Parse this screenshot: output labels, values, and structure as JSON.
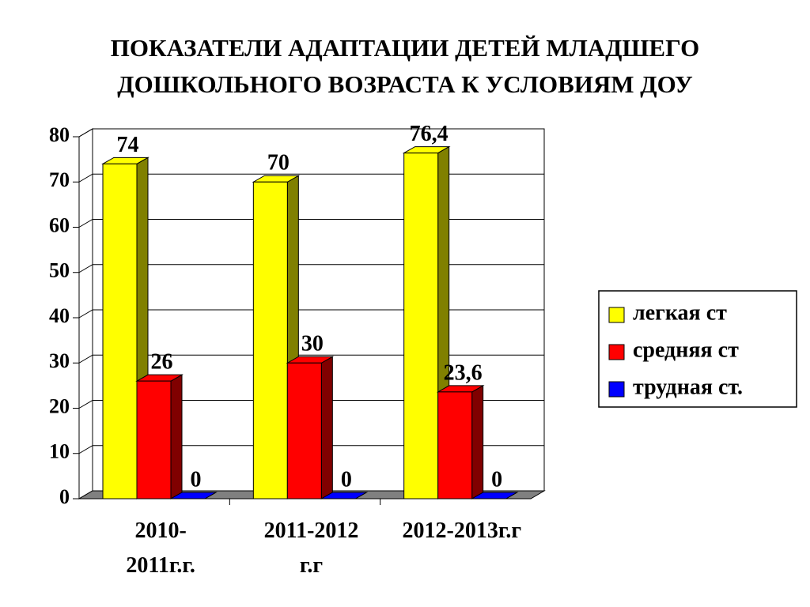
{
  "chart_data": {
    "type": "bar3d",
    "title": "ПОКАЗАТЕЛИ АДАПТАЦИИ ДЕТЕЙ МЛАДШЕГО ДОШКОЛЬНОГО ВОЗРАСТА К УСЛОВИЯМ ДОУ",
    "categories": [
      "2010-2011г.г.",
      "2011-2012 г.г",
      "2012-2013г.г"
    ],
    "series": [
      {
        "name": "легкая ст",
        "color": "#ffff00",
        "values": [
          74,
          70,
          76.4
        ],
        "value_labels": [
          "74",
          "70",
          "76,4"
        ]
      },
      {
        "name": "средняя ст",
        "color": "#ff0000",
        "values": [
          26,
          30,
          23.6
        ],
        "value_labels": [
          "26",
          "30",
          "23,6"
        ]
      },
      {
        "name": "трудная ст.",
        "color": "#0000ff",
        "values": [
          0,
          0,
          0
        ],
        "value_labels": [
          "0",
          "0",
          "0"
        ]
      }
    ],
    "ylim": [
      0,
      80
    ],
    "yticks": [
      0,
      10,
      20,
      30,
      40,
      50,
      60,
      70,
      80
    ],
    "grid": true,
    "legend": "right"
  }
}
